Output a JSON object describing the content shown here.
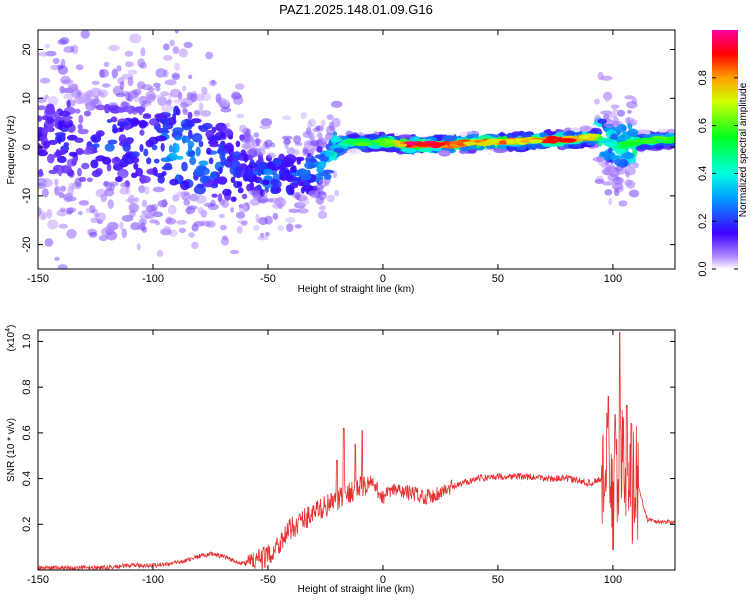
{
  "title": "PAZ1.2025.148.01.09.G16",
  "chart_data": [
    {
      "type": "heatmap",
      "xlabel": "Height of straight line (km)",
      "ylabel": "Frequency (Hz)",
      "xlim": [
        -150,
        127
      ],
      "ylim": [
        -25,
        24
      ],
      "xticks": [
        -150,
        -100,
        -50,
        0,
        50,
        100
      ],
      "yticks": [
        -20,
        -10,
        0,
        10,
        20
      ],
      "ridge": {
        "x": [
          -150,
          -140,
          -130,
          -120,
          -110,
          -100,
          -90,
          -80,
          -70,
          -60,
          -50,
          -40,
          -30,
          -25,
          -20,
          -15,
          -10,
          -5,
          0,
          10,
          20,
          30,
          40,
          50,
          60,
          70,
          80,
          90,
          95,
          98,
          102,
          105,
          110,
          120,
          127
        ],
        "freq": [
          1,
          2,
          0,
          1,
          0,
          0,
          0,
          -2,
          -3,
          -5,
          -6,
          -6,
          -5,
          -3,
          0,
          1,
          1,
          1,
          1,
          0.5,
          0.5,
          0.5,
          1,
          1,
          1.2,
          1.5,
          1.5,
          2,
          2,
          1,
          0,
          0.5,
          1,
          1.5,
          1.5
        ],
        "amplitude": [
          0.15,
          0.2,
          0.15,
          0.25,
          0.2,
          0.2,
          0.35,
          0.3,
          0.25,
          0.2,
          0.3,
          0.25,
          0.3,
          0.4,
          0.5,
          0.55,
          0.6,
          0.55,
          0.6,
          0.95,
          0.95,
          0.9,
          0.8,
          0.85,
          0.8,
          0.85,
          0.9,
          0.8,
          0.5,
          0.4,
          0.5,
          0.55,
          0.6,
          0.6,
          0.6
        ]
      },
      "colorbar": {
        "label": "Normalized spectral amplitude",
        "range": [
          0,
          1
        ],
        "ticks": [
          0.0,
          0.2,
          0.4,
          0.6,
          0.8
        ]
      }
    },
    {
      "type": "line",
      "xlabel": "Height of straight line (km)",
      "ylabel": "SNR (10 * v/v)",
      "y_scale_note": "(x10",
      "y_scale_exp": "4",
      "y_scale_close": ")",
      "xlim": [
        -150,
        127
      ],
      "ylim": [
        0,
        1.05
      ],
      "xticks": [
        -150,
        -100,
        -50,
        0,
        50,
        100
      ],
      "yticks": [
        0.2,
        0.4,
        0.6,
        0.8,
        1.0
      ],
      "line_color": "#e83030",
      "x": [
        -150,
        -140,
        -130,
        -120,
        -110,
        -100,
        -90,
        -80,
        -75,
        -70,
        -65,
        -60,
        -55,
        -50,
        -45,
        -40,
        -35,
        -30,
        -25,
        -20,
        -15,
        -10,
        -5,
        0,
        5,
        10,
        20,
        30,
        40,
        50,
        60,
        70,
        80,
        90,
        95,
        98,
        100,
        102,
        104,
        106,
        108,
        110,
        115,
        120,
        127
      ],
      "values": [
        0.01,
        0.01,
        0.01,
        0.01,
        0.02,
        0.02,
        0.03,
        0.06,
        0.07,
        0.06,
        0.04,
        0.03,
        0.04,
        0.06,
        0.12,
        0.18,
        0.22,
        0.25,
        0.28,
        0.3,
        0.34,
        0.36,
        0.38,
        0.32,
        0.35,
        0.34,
        0.32,
        0.36,
        0.4,
        0.41,
        0.41,
        0.4,
        0.4,
        0.38,
        0.4,
        0.45,
        0.3,
        0.4,
        0.5,
        0.4,
        0.35,
        0.4,
        0.22,
        0.21,
        0.21
      ],
      "peaks": [
        {
          "x": -20,
          "y": 0.48
        },
        {
          "x": -17,
          "y": 0.62
        },
        {
          "x": -12,
          "y": 0.55
        },
        {
          "x": -9,
          "y": 0.61
        },
        {
          "x": 98,
          "y": 0.76
        },
        {
          "x": 101,
          "y": 0.68
        },
        {
          "x": 103,
          "y": 1.04
        },
        {
          "x": 106,
          "y": 0.72
        },
        {
          "x": 108,
          "y": 0.64
        }
      ]
    }
  ]
}
